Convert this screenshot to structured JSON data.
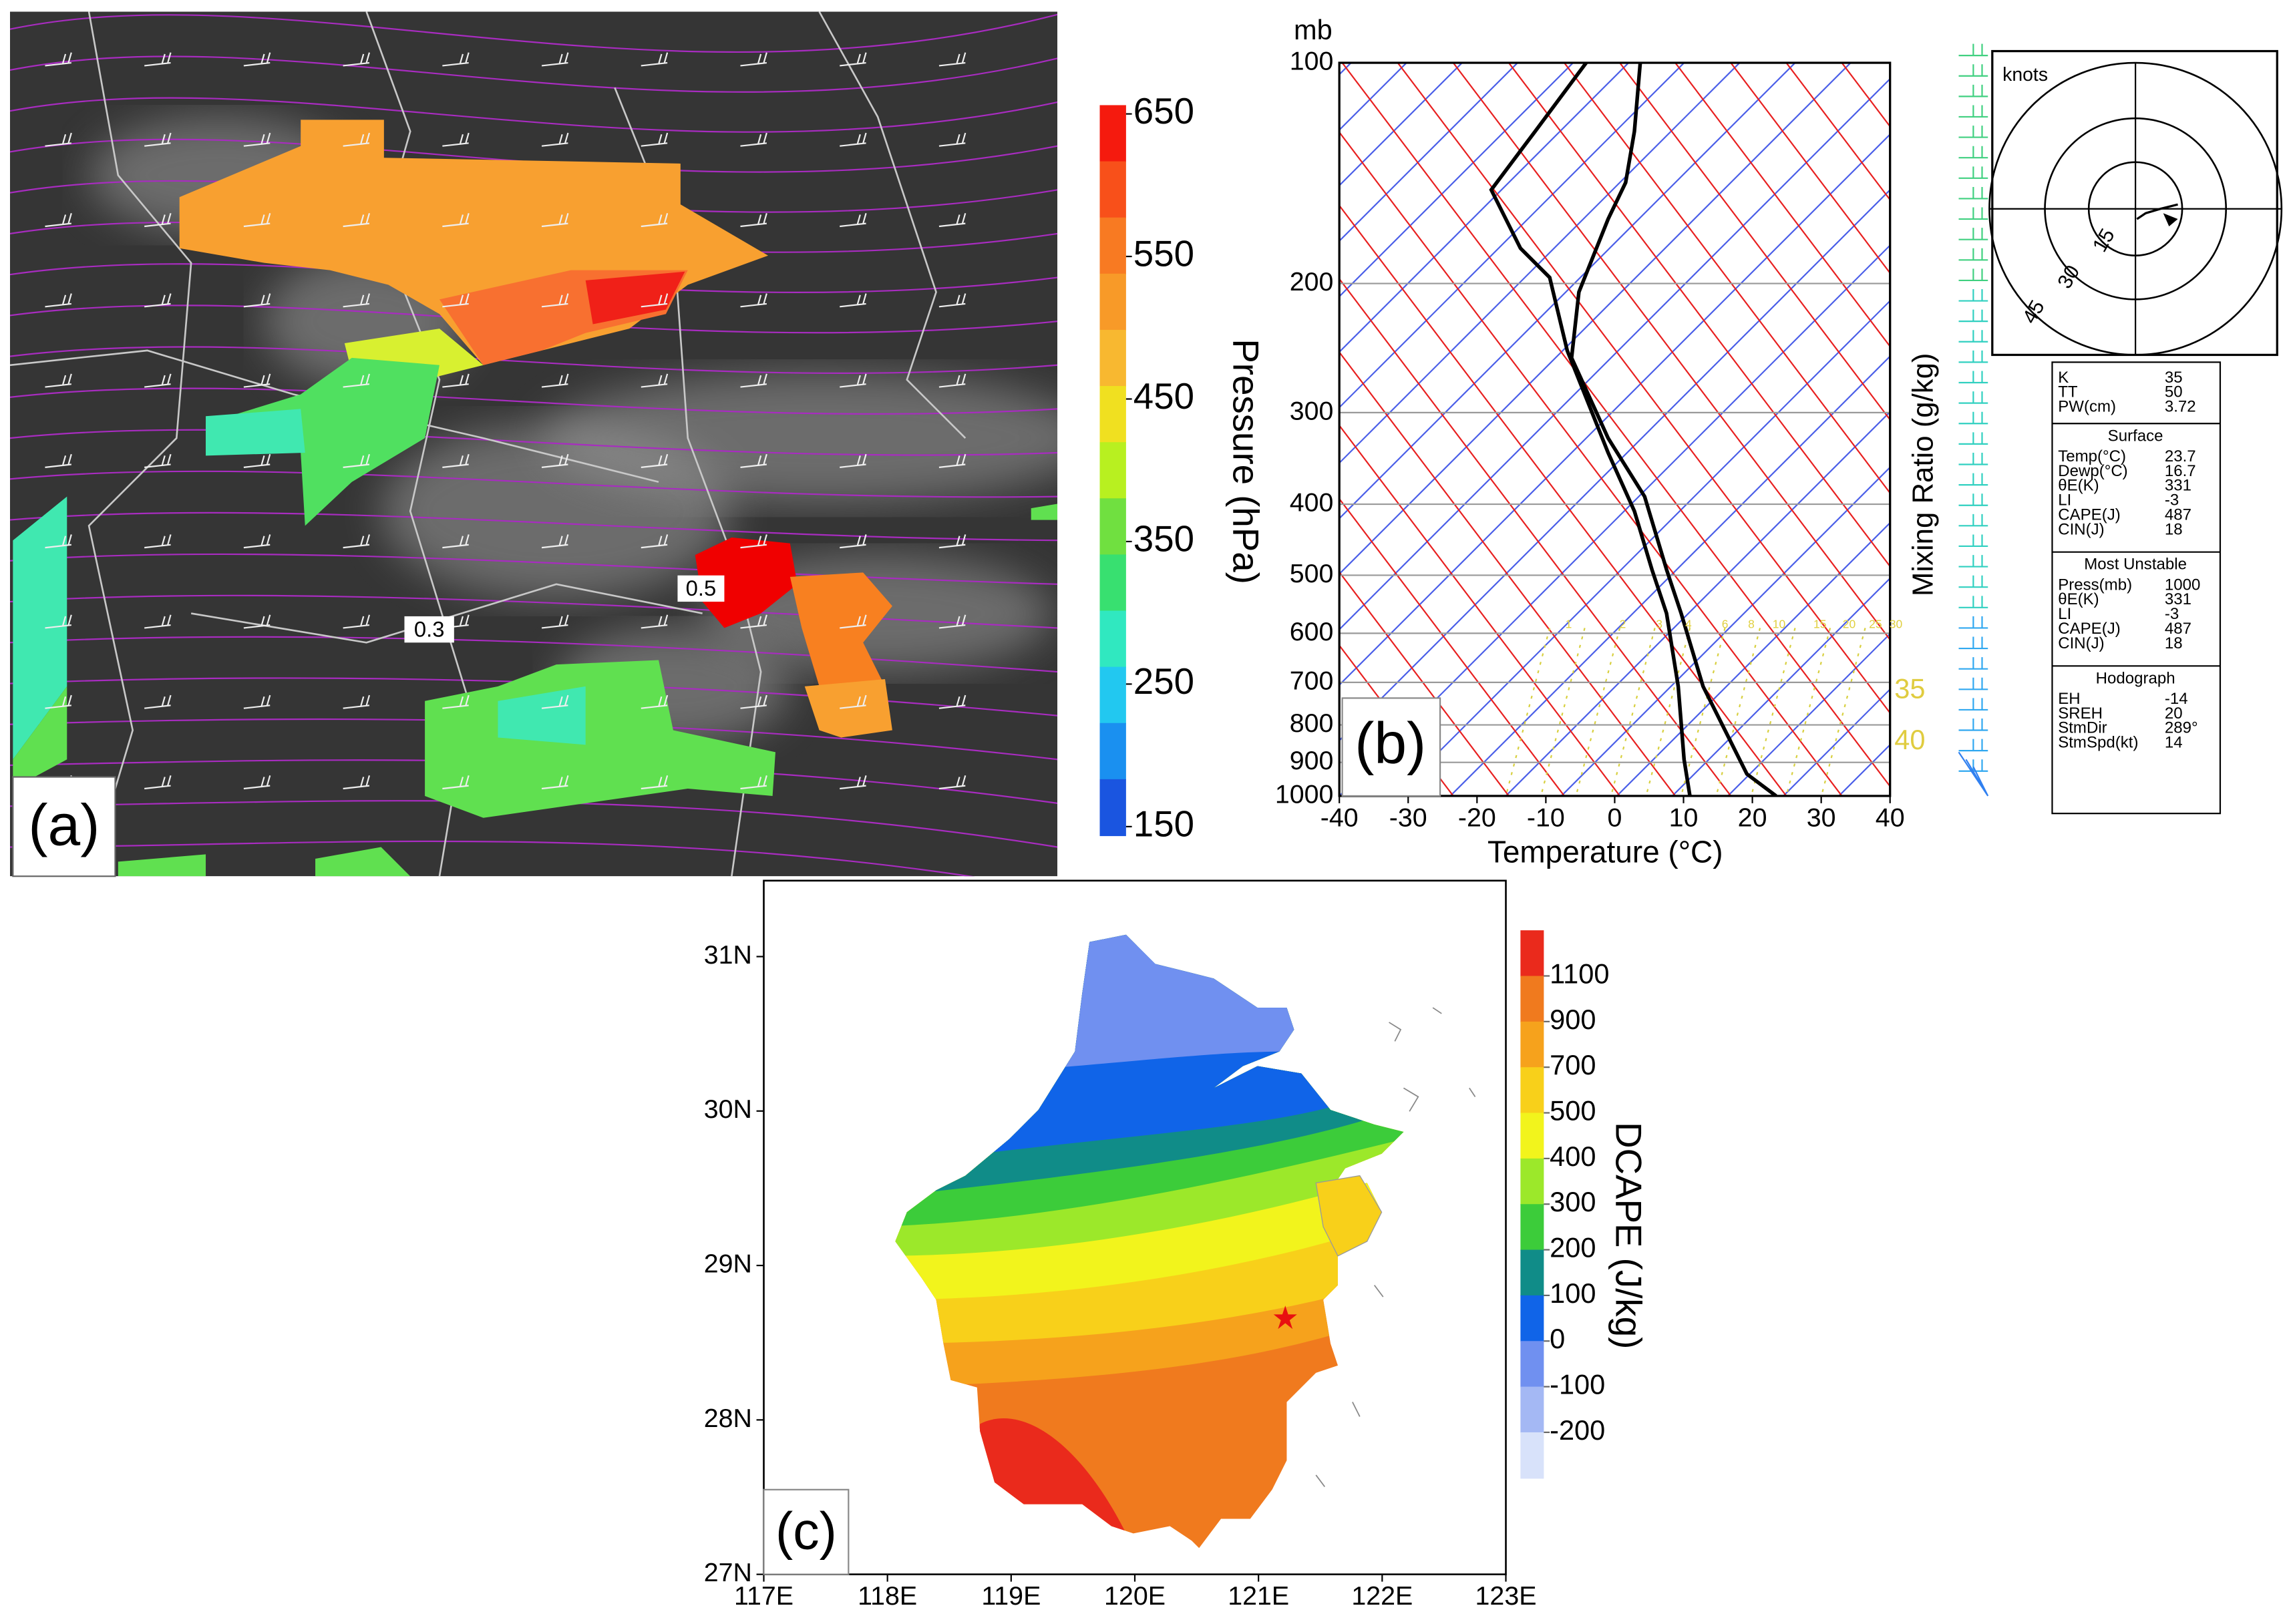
{
  "panel_a": {
    "label": "(a)",
    "colorbar_title": "Pressure (hPa)",
    "colorbar_ticks": [
      650,
      550,
      450,
      350,
      250,
      150
    ],
    "colorbar_colors": [
      "#f51a0e",
      "#f8501a",
      "#f87a22",
      "#f89a28",
      "#f8b830",
      "#f0e020",
      "#b8f020",
      "#70e040",
      "#38e070",
      "#30e8c0",
      "#22c8f0",
      "#1a90f0",
      "#1a55e0"
    ],
    "contour_labels": [
      "0.5",
      "0.3"
    ]
  },
  "panel_b": {
    "label": "(b)",
    "y_unit": "mb",
    "yticks": [
      100,
      200,
      300,
      400,
      500,
      600,
      700,
      800,
      900,
      1000
    ],
    "xticks": [
      -40,
      -30,
      -20,
      -10,
      0,
      10,
      20,
      30,
      40
    ],
    "x_label": "Temperature (°C)",
    "right_label": "Mixing Ratio (g/kg)",
    "mixing_ratio_labels": [
      "1",
      "2",
      "3",
      "4",
      "6",
      "8",
      "10",
      "15",
      "20",
      "25",
      "30"
    ],
    "side_labels": [
      "35",
      "40"
    ],
    "hodograph": {
      "unit": "knots",
      "rings": [
        "15",
        "30",
        "45"
      ]
    },
    "indices": {
      "top": [
        [
          "K",
          "35"
        ],
        [
          "TT",
          "50"
        ],
        [
          "PW(cm)",
          "3.72"
        ]
      ],
      "sections": [
        {
          "title": "Surface",
          "rows": [
            [
              "Temp(°C)",
              "23.7"
            ],
            [
              "Dewp(°C)",
              "16.7"
            ],
            [
              "θE(K)",
              "331"
            ],
            [
              "LI",
              "-3"
            ],
            [
              "CAPE(J)",
              "487"
            ],
            [
              "CIN(J)",
              "18"
            ]
          ]
        },
        {
          "title": "Most Unstable",
          "rows": [
            [
              "Press(mb)",
              "1000"
            ],
            [
              "θE(K)",
              "331"
            ],
            [
              "LI",
              "-3"
            ],
            [
              "CAPE(J)",
              "487"
            ],
            [
              "CIN(J)",
              "18"
            ]
          ]
        },
        {
          "title": "Hodograph",
          "rows": [
            [
              "EH",
              "-14"
            ],
            [
              "SREH",
              "20"
            ],
            [
              "StmDir",
              "289°"
            ],
            [
              "StmSpd(kt)",
              "14"
            ]
          ]
        }
      ]
    }
  },
  "panel_c": {
    "label": "(c)",
    "xticks": [
      "117E",
      "118E",
      "119E",
      "120E",
      "121E",
      "122E",
      "123E"
    ],
    "yticks": [
      "31N",
      "30N",
      "29N",
      "28N",
      "27N"
    ],
    "colorbar_title": "DCAPE (J/kg)",
    "colorbar_ticks": [
      1100,
      900,
      700,
      500,
      400,
      300,
      200,
      100,
      0,
      -100,
      -200
    ],
    "colorbar_colors": [
      "#ea2a1c",
      "#f07a1e",
      "#f6a21c",
      "#f8d01a",
      "#f2f41c",
      "#9ce82a",
      "#3ccc3a",
      "#108c88",
      "#1064e8",
      "#7090f0",
      "#a4b8f4",
      "#d8e2fa"
    ]
  }
}
